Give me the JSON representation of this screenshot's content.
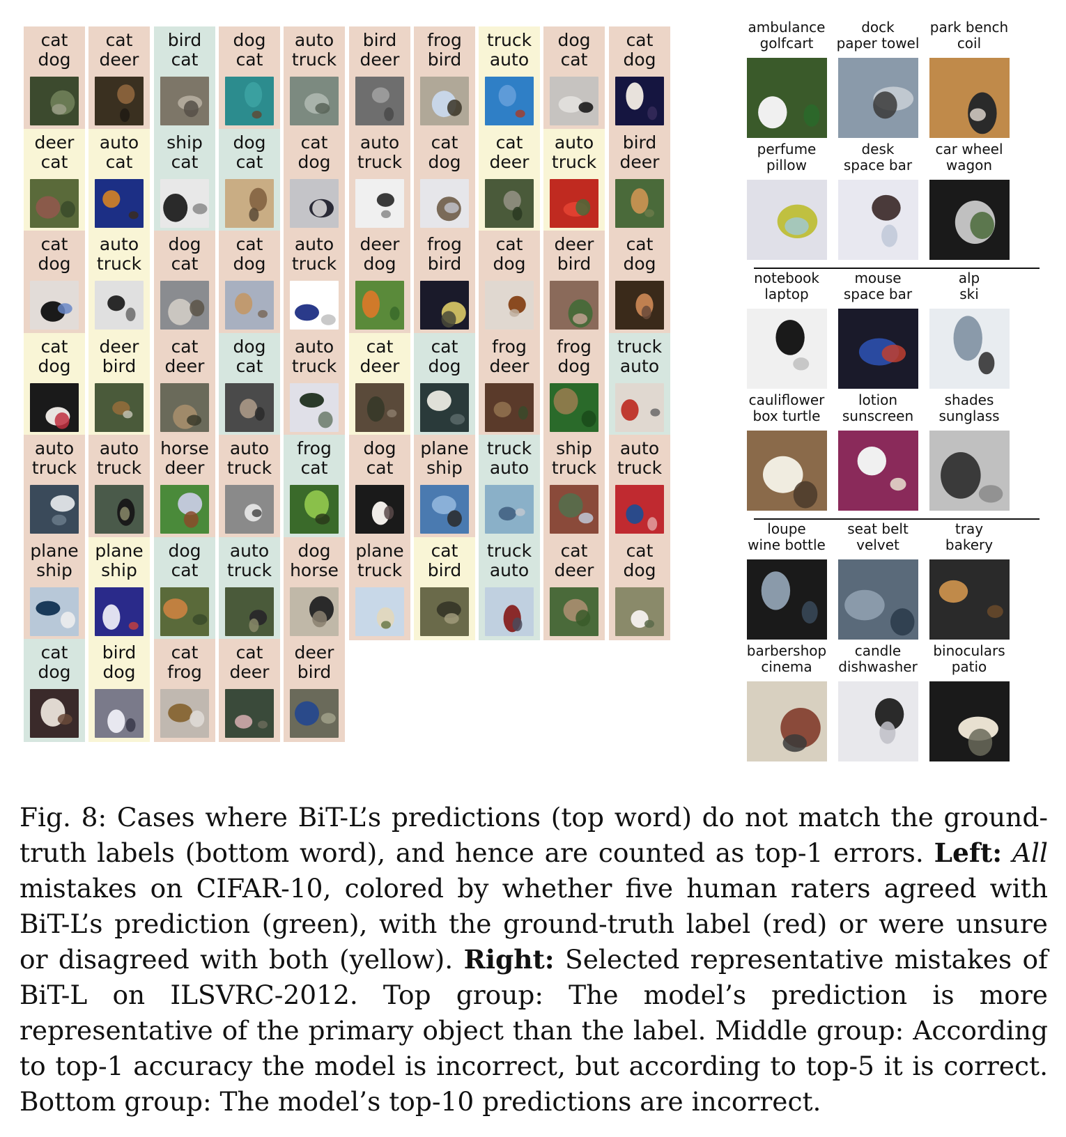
{
  "colors": {
    "red": "#ecd5c7",
    "green": "#d6e6df",
    "yellow": "#f9f5d6"
  },
  "cifar": [
    [
      {
        "pred": "cat",
        "truth": "dog",
        "agree": "red",
        "img": [
          "#3c4a2e",
          "#6a7a54",
          "#9a9d87"
        ]
      },
      {
        "pred": "cat",
        "truth": "deer",
        "agree": "red",
        "img": [
          "#3a3020",
          "#86603a",
          "#201a14"
        ]
      },
      {
        "pred": "bird",
        "truth": "cat",
        "agree": "green",
        "img": [
          "#7d7668",
          "#b0a89a",
          "#565048"
        ]
      },
      {
        "pred": "dog",
        "truth": "cat",
        "agree": "red",
        "img": [
          "#2c8c8e",
          "#3aa0a0",
          "#5e4a36"
        ]
      },
      {
        "pred": "auto",
        "truth": "truck",
        "agree": "red",
        "img": [
          "#7c8a80",
          "#a9b3ab",
          "#596458"
        ]
      },
      {
        "pred": "bird",
        "truth": "deer",
        "agree": "red",
        "img": [
          "#6e6e6e",
          "#9a9a9a",
          "#4a4a4a"
        ]
      },
      {
        "pred": "frog",
        "truth": "bird",
        "agree": "red",
        "img": [
          "#b0a898",
          "#c8d6e8",
          "#3a3426"
        ]
      },
      {
        "pred": "truck",
        "truth": "auto",
        "agree": "yellow",
        "img": [
          "#2f7fc6",
          "#5e9bd8",
          "#a04030"
        ]
      },
      {
        "pred": "dog",
        "truth": "cat",
        "agree": "red",
        "img": [
          "#c6c3c0",
          "#e0dedb",
          "#111111"
        ]
      },
      {
        "pred": "cat",
        "truth": "dog",
        "agree": "red",
        "img": [
          "#151540",
          "#e8e2dc",
          "#352a5a"
        ]
      }
    ],
    [
      {
        "pred": "deer",
        "truth": "cat",
        "agree": "yellow",
        "img": [
          "#5a6a3a",
          "#8a5a4a",
          "#3a4a2a"
        ]
      },
      {
        "pred": "auto",
        "truth": "cat",
        "agree": "yellow",
        "img": [
          "#1c2f85",
          "#c27a2e",
          "#3a2c20"
        ]
      },
      {
        "pred": "ship",
        "truth": "cat",
        "agree": "green",
        "img": [
          "#e8e8e8",
          "#2a2a2a",
          "#8a8a8a"
        ]
      },
      {
        "pred": "dog",
        "truth": "cat",
        "agree": "green",
        "img": [
          "#c9ad84",
          "#8a6a48",
          "#5a4a36"
        ]
      },
      {
        "pred": "cat",
        "truth": "dog",
        "agree": "red",
        "img": [
          "#c4c4c8",
          "#2a2a36",
          "#e0dede"
        ]
      },
      {
        "pred": "auto",
        "truth": "truck",
        "agree": "red",
        "img": [
          "#f0f0f0",
          "#3a3a3a",
          "#8a8a8a"
        ]
      },
      {
        "pred": "cat",
        "truth": "dog",
        "agree": "red",
        "img": [
          "#e6e6ea",
          "#7a6a58",
          "#c0c0c8"
        ]
      },
      {
        "pred": "cat",
        "truth": "deer",
        "agree": "yellow",
        "img": [
          "#4a5a3a",
          "#8a8a7a",
          "#2a3a22"
        ]
      },
      {
        "pred": "auto",
        "truth": "truck",
        "agree": "yellow",
        "img": [
          "#c02a20",
          "#e04030",
          "#4a6a3a"
        ]
      },
      {
        "pred": "bird",
        "truth": "deer",
        "agree": "red",
        "img": [
          "#4a6a3a",
          "#c09050",
          "#6a7a4a"
        ]
      }
    ],
    [
      {
        "pred": "cat",
        "truth": "dog",
        "agree": "red",
        "img": [
          "#e2dcd8",
          "#1a1a1a",
          "#6a88c8"
        ]
      },
      {
        "pred": "auto",
        "truth": "truck",
        "agree": "yellow",
        "img": [
          "#e0e0e0",
          "#2a2a2a",
          "#6a6a6a"
        ]
      },
      {
        "pred": "dog",
        "truth": "cat",
        "agree": "red",
        "img": [
          "#8a8c90",
          "#cac6c0",
          "#5a5448"
        ]
      },
      {
        "pred": "cat",
        "truth": "dog",
        "agree": "red",
        "img": [
          "#a8b0c0",
          "#c09a70",
          "#7a6a5a"
        ]
      },
      {
        "pred": "auto",
        "truth": "truck",
        "agree": "red",
        "img": [
          "#ffffff",
          "#2a3a8a",
          "#c0c0c0"
        ]
      },
      {
        "pred": "deer",
        "truth": "dog",
        "agree": "red",
        "img": [
          "#5a8a3a",
          "#d07a2a",
          "#3a6a2a"
        ]
      },
      {
        "pred": "frog",
        "truth": "bird",
        "agree": "red",
        "img": [
          "#1a1a2a",
          "#c8b860",
          "#4a4a3a"
        ]
      },
      {
        "pred": "cat",
        "truth": "dog",
        "agree": "red",
        "img": [
          "#e0d8d0",
          "#8a4a20",
          "#c0b0a0"
        ]
      },
      {
        "pred": "deer",
        "truth": "bird",
        "agree": "red",
        "img": [
          "#8a6a5a",
          "#4a6a3a",
          "#c0a090"
        ]
      },
      {
        "pred": "cat",
        "truth": "dog",
        "agree": "red",
        "img": [
          "#3a2a1a",
          "#c08050",
          "#6a4a3a"
        ]
      }
    ],
    [
      {
        "pred": "cat",
        "truth": "dog",
        "agree": "yellow",
        "img": [
          "#1a1a1a",
          "#e8e4e0",
          "#c03040"
        ]
      },
      {
        "pred": "deer",
        "truth": "bird",
        "agree": "yellow",
        "img": [
          "#4a5a3a",
          "#8a6a3a",
          "#c0c0b0"
        ]
      },
      {
        "pred": "cat",
        "truth": "deer",
        "agree": "red",
        "img": [
          "#6a6a5a",
          "#a08a6a",
          "#3a3a2a"
        ]
      },
      {
        "pred": "dog",
        "truth": "cat",
        "agree": "green",
        "img": [
          "#4a4a4a",
          "#a09080",
          "#2a2a2a"
        ]
      },
      {
        "pred": "auto",
        "truth": "truck",
        "agree": "red",
        "img": [
          "#e0e0e8",
          "#2a3a2a",
          "#6a7a6a"
        ]
      },
      {
        "pred": "cat",
        "truth": "deer",
        "agree": "yellow",
        "img": [
          "#5a4a3a",
          "#3a3a2a",
          "#8a7a6a"
        ]
      },
      {
        "pred": "cat",
        "truth": "dog",
        "agree": "green",
        "img": [
          "#2a3a3a",
          "#e0e0d8",
          "#5a6a6a"
        ]
      },
      {
        "pred": "frog",
        "truth": "deer",
        "agree": "red",
        "img": [
          "#5a3a2a",
          "#8a6a4a",
          "#3a4a2a"
        ]
      },
      {
        "pred": "frog",
        "truth": "dog",
        "agree": "red",
        "img": [
          "#2a6a2a",
          "#8a7a4a",
          "#1a4a1a"
        ]
      },
      {
        "pred": "truck",
        "truth": "auto",
        "agree": "green",
        "img": [
          "#e0d8d0",
          "#c03a30",
          "#6a6a6a"
        ]
      }
    ],
    [
      {
        "pred": "auto",
        "truth": "truck",
        "agree": "red",
        "img": [
          "#3a4a5a",
          "#d8dce0",
          "#6a7a8a"
        ]
      },
      {
        "pred": "auto",
        "truth": "truck",
        "agree": "red",
        "img": [
          "#4a5a4a",
          "#1a1a1a",
          "#8a8a6a"
        ]
      },
      {
        "pred": "horse",
        "truth": "deer",
        "agree": "red",
        "img": [
          "#4a8a3a",
          "#c0c8d8",
          "#8a4a2a"
        ]
      },
      {
        "pred": "auto",
        "truth": "truck",
        "agree": "red",
        "img": [
          "#8a8a8a",
          "#e0e0e0",
          "#4a4a4a"
        ]
      },
      {
        "pred": "frog",
        "truth": "cat",
        "agree": "green",
        "img": [
          "#3a6a2a",
          "#8ac04a",
          "#2a3a1a"
        ]
      },
      {
        "pred": "dog",
        "truth": "cat",
        "agree": "red",
        "img": [
          "#1a1a1a",
          "#f0ece8",
          "#5a4a4a"
        ]
      },
      {
        "pred": "plane",
        "truth": "ship",
        "agree": "red",
        "img": [
          "#4a7ab0",
          "#8ab0d8",
          "#2a2a2a"
        ]
      },
      {
        "pred": "truck",
        "truth": "auto",
        "agree": "green",
        "img": [
          "#8ab0c8",
          "#4a6a8a",
          "#c0c8d0"
        ]
      },
      {
        "pred": "ship",
        "truth": "truck",
        "agree": "red",
        "img": [
          "#8a4a3a",
          "#5a6a4a",
          "#c0c8d8"
        ]
      },
      {
        "pred": "auto",
        "truth": "truck",
        "agree": "red",
        "img": [
          "#c02a30",
          "#2a4a8a",
          "#e0a0a0"
        ]
      }
    ],
    [
      {
        "pred": "plane",
        "truth": "ship",
        "agree": "red",
        "img": [
          "#b8c8d8",
          "#1a3a5a",
          "#f0f0f0"
        ]
      },
      {
        "pred": "plane",
        "truth": "ship",
        "agree": "yellow",
        "img": [
          "#2a2a8a",
          "#e0e0f0",
          "#c04040"
        ]
      },
      {
        "pred": "dog",
        "truth": "cat",
        "agree": "green",
        "img": [
          "#5a6a3a",
          "#c08040",
          "#3a4a2a"
        ]
      },
      {
        "pred": "auto",
        "truth": "truck",
        "agree": "green",
        "img": [
          "#4a5a3a",
          "#2a2a2a",
          "#8a8a6a"
        ]
      },
      {
        "pred": "dog",
        "truth": "horse",
        "agree": "red",
        "img": [
          "#c0b8a8",
          "#2a2a2a",
          "#8a8070"
        ]
      },
      {
        "pred": "plane",
        "truth": "truck",
        "agree": "red",
        "img": [
          "#c8d8e8",
          "#e0d8c0",
          "#6a7a4a"
        ]
      },
      {
        "pred": "cat",
        "truth": "bird",
        "agree": "yellow",
        "img": [
          "#6a6a4a",
          "#3a3a2a",
          "#a09a7a"
        ]
      },
      {
        "pred": "truck",
        "truth": "auto",
        "agree": "green",
        "img": [
          "#c0d0e0",
          "#8a2a2a",
          "#4a4a5a"
        ]
      },
      {
        "pred": "cat",
        "truth": "deer",
        "agree": "red",
        "img": [
          "#4a6a3a",
          "#a08a6a",
          "#3a5a2a"
        ]
      },
      {
        "pred": "cat",
        "truth": "dog",
        "agree": "red",
        "img": [
          "#8a8a6a",
          "#f0ece8",
          "#5a6a4a"
        ]
      }
    ],
    [
      {
        "pred": "cat",
        "truth": "dog",
        "agree": "green",
        "img": [
          "#3a2a2a",
          "#e0d8d0",
          "#6a4a3a"
        ]
      },
      {
        "pred": "bird",
        "truth": "dog",
        "agree": "yellow",
        "img": [
          "#7a7a8a",
          "#e8e8f0",
          "#3a3a4a"
        ]
      },
      {
        "pred": "cat",
        "truth": "frog",
        "agree": "red",
        "img": [
          "#c0b8b0",
          "#8a6a3a",
          "#e0dcd8"
        ]
      },
      {
        "pred": "cat",
        "truth": "deer",
        "agree": "red",
        "img": [
          "#3a4a3a",
          "#c0a0a0",
          "#6a6a5a"
        ]
      },
      {
        "pred": "deer",
        "truth": "bird",
        "agree": "red",
        "img": [
          "#6a6a5a",
          "#2a4a8a",
          "#a0a08a"
        ]
      }
    ]
  ],
  "imagenet": {
    "groups": [
      [
        [
          {
            "pred": "ambulance",
            "truth": "golfcart",
            "img": [
              "#3a5a2a",
              "#f0f0f0",
              "#2a6a2a"
            ]
          },
          {
            "pred": "dock",
            "truth": "paper towel",
            "img": [
              "#8a9aaa",
              "#c0c8d0",
              "#3a3a3a"
            ]
          },
          {
            "pred": "park bench",
            "truth": "coil",
            "img": [
              "#c08a4a",
              "#2a2a2a",
              "#d8d0c8"
            ]
          }
        ],
        [
          {
            "pred": "perfume",
            "truth": "pillow",
            "img": [
              "#e0e0e8",
              "#c0c040",
              "#a0c8d0"
            ]
          },
          {
            "pred": "desk",
            "truth": "space bar",
            "img": [
              "#e8e8f0",
              "#4a3a3a",
              "#c0c8d8"
            ]
          },
          {
            "pred": "car wheel",
            "truth": "wagon",
            "img": [
              "#1a1a1a",
              "#c0c0c0",
              "#4a6a3a"
            ]
          }
        ]
      ],
      [
        [
          {
            "pred": "notebook",
            "truth": "laptop",
            "img": [
              "#f0f0f0",
              "#1a1a1a",
              "#c0c0c0"
            ]
          },
          {
            "pred": "mouse",
            "truth": "space bar",
            "img": [
              "#1a1a2a",
              "#2a4aa0",
              "#c04030"
            ]
          },
          {
            "pred": "alp",
            "truth": "ski",
            "img": [
              "#e8ecf0",
              "#8a9aaa",
              "#2a2a2a"
            ]
          }
        ],
        [
          {
            "pred": "cauliflower",
            "truth": "box turtle",
            "img": [
              "#8a6a4a",
              "#f0ece0",
              "#4a3a2a"
            ]
          },
          {
            "pred": "lotion",
            "truth": "sunscreen",
            "img": [
              "#8a2a5a",
              "#f0f0f0",
              "#e8e0d0"
            ]
          },
          {
            "pred": "shades",
            "truth": "sunglass",
            "img": [
              "#c0c0c0",
              "#3a3a3a",
              "#8a8a8a"
            ]
          }
        ]
      ],
      [
        [
          {
            "pred": "loupe",
            "truth": "wine bottle",
            "img": [
              "#1a1a1a",
              "#8a9aaa",
              "#3a4a5a"
            ]
          },
          {
            "pred": "seat belt",
            "truth": "velvet",
            "img": [
              "#5a6a7a",
              "#8a9aaa",
              "#2a3a4a"
            ]
          },
          {
            "pred": "tray",
            "truth": "bakery",
            "img": [
              "#2a2a2a",
              "#c08a4a",
              "#6a4a2a"
            ]
          }
        ],
        [
          {
            "pred": "barbershop",
            "truth": "cinema",
            "img": [
              "#d8d0c0",
              "#8a4a3a",
              "#3a3a3a"
            ]
          },
          {
            "pred": "candle",
            "truth": "dishwasher",
            "img": [
              "#e8e8ec",
              "#2a2a2a",
              "#c0c0c8"
            ]
          },
          {
            "pred": "binoculars",
            "truth": "patio",
            "img": [
              "#1a1a1a",
              "#e8e0d0",
              "#6a6a5a"
            ]
          }
        ]
      ]
    ]
  },
  "caption": {
    "p1": "Fig. 8: Cases where BiT-L’s predictions (top word) do not match the ground-truth labels (bottom word), and hence are counted as top-1 errors. ",
    "left_label": "Left:",
    "all_word": "All",
    "p2": " mistakes on CIFAR-10, colored by whether five human raters agreed with BiT-L’s prediction (green), with the ground-truth label (red) or were unsure or disagreed with both (yellow). ",
    "right_label": "Right:",
    "p3": " Selected representative mistakes of BiT-L on ILSVRC-2012. Top group: The model’s prediction is more representative of the primary object than the label. Middle group: According to top-1 accuracy the model is incorrect, but according to top-5 it is correct. Bottom group: The model’s top-10 predictions are incorrect."
  }
}
